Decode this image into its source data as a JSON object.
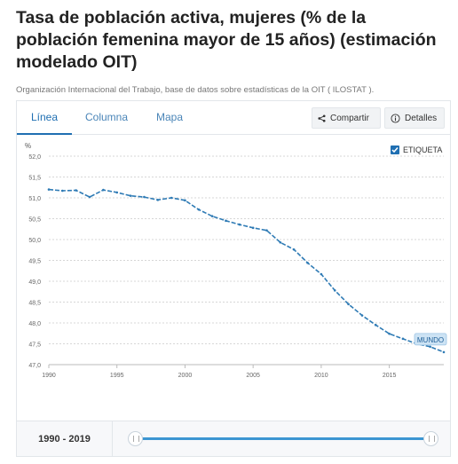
{
  "title": "Tasa de población activa, mujeres (% de la población femenina mayor de 15 años) (estimación modelado OIT)",
  "source": "Organización Internacional del Trabajo, base de datos sobre estadísticas de la OIT ( ILOSTAT ).",
  "tabs": [
    {
      "label": "Línea",
      "active": true
    },
    {
      "label": "Columna",
      "active": false
    },
    {
      "label": "Mapa",
      "active": false
    }
  ],
  "buttons": {
    "share": "Compartir",
    "details": "Detalles"
  },
  "legend": {
    "label": "ETIQUETA",
    "checked": true
  },
  "range": {
    "label": "1990 - 2019"
  },
  "colors": {
    "line": "#2f7bb5",
    "accent": "#1f6fb2",
    "slider": "#3c96d2",
    "label_bg": "#cde3f4"
  },
  "chart_data": {
    "type": "line",
    "ylabel": "%",
    "ylim": [
      47.0,
      52.0
    ],
    "yticks": [
      "47,0",
      "47,5",
      "48,0",
      "48,5",
      "49,0",
      "49,5",
      "50,0",
      "50,5",
      "51,0",
      "51,5",
      "52,0"
    ],
    "xlim": [
      1990,
      2019
    ],
    "xticks": [
      "1990",
      "1995",
      "2000",
      "2005",
      "2010",
      "2015"
    ],
    "grid": true,
    "series": [
      {
        "name": "MUNDO",
        "x": [
          1990,
          1991,
          1992,
          1993,
          1994,
          1995,
          1996,
          1997,
          1998,
          1999,
          2000,
          2001,
          2002,
          2003,
          2004,
          2005,
          2006,
          2007,
          2008,
          2009,
          2010,
          2011,
          2012,
          2013,
          2014,
          2015,
          2016,
          2017,
          2018,
          2019
        ],
        "values": [
          51.2,
          51.17,
          51.18,
          51.02,
          51.19,
          51.13,
          51.05,
          51.02,
          50.95,
          51.0,
          50.94,
          50.72,
          50.56,
          50.45,
          50.36,
          50.28,
          50.22,
          49.93,
          49.76,
          49.44,
          49.17,
          48.78,
          48.45,
          48.18,
          47.95,
          47.74,
          47.62,
          47.5,
          47.43,
          47.3
        ]
      }
    ]
  }
}
